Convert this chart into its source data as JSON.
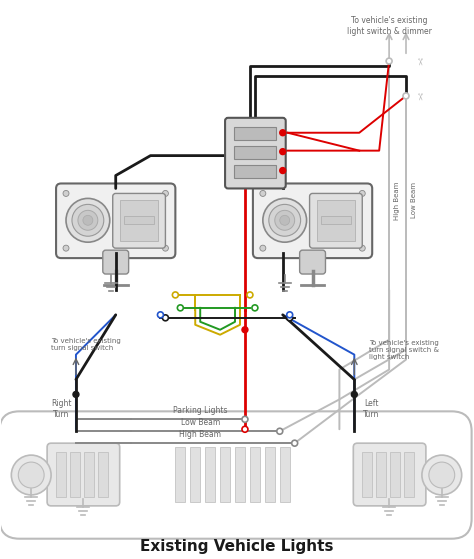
{
  "title": "Existing Vehicle Lights",
  "title_fontsize": 11,
  "background_color": "#ffffff",
  "figsize": [
    4.74,
    5.59
  ],
  "dpi": 100,
  "colors": {
    "black": "#1a1a1a",
    "red": "#dd0000",
    "blue": "#2255cc",
    "yellow": "#ccaa00",
    "green": "#229922",
    "gray": "#aaaaaa",
    "light_gray": "#bbbbbb",
    "dark_gray": "#666666",
    "wire_gray": "#888888",
    "box_fill": "#d8d8d8",
    "box_edge": "#555555",
    "light_fill": "#e8e8e8",
    "light_edge": "#777777"
  },
  "labels": {
    "top_right": "To vehicle's existing\nlight switch & dimmer",
    "right_high": "High Beam",
    "right_low": "Low Beam",
    "left_turn_signal": "To vehicle's existing\nturn signal switch",
    "right_turn_signal": "To vehicle's existing\nturn signal switch &\nlight switch",
    "right_turn": "Right\nTurn",
    "left_turn": "Left\nTurn",
    "parking_lights": "Parking Lights",
    "low_beam": "Low Beam",
    "high_beam": "High Beam"
  }
}
